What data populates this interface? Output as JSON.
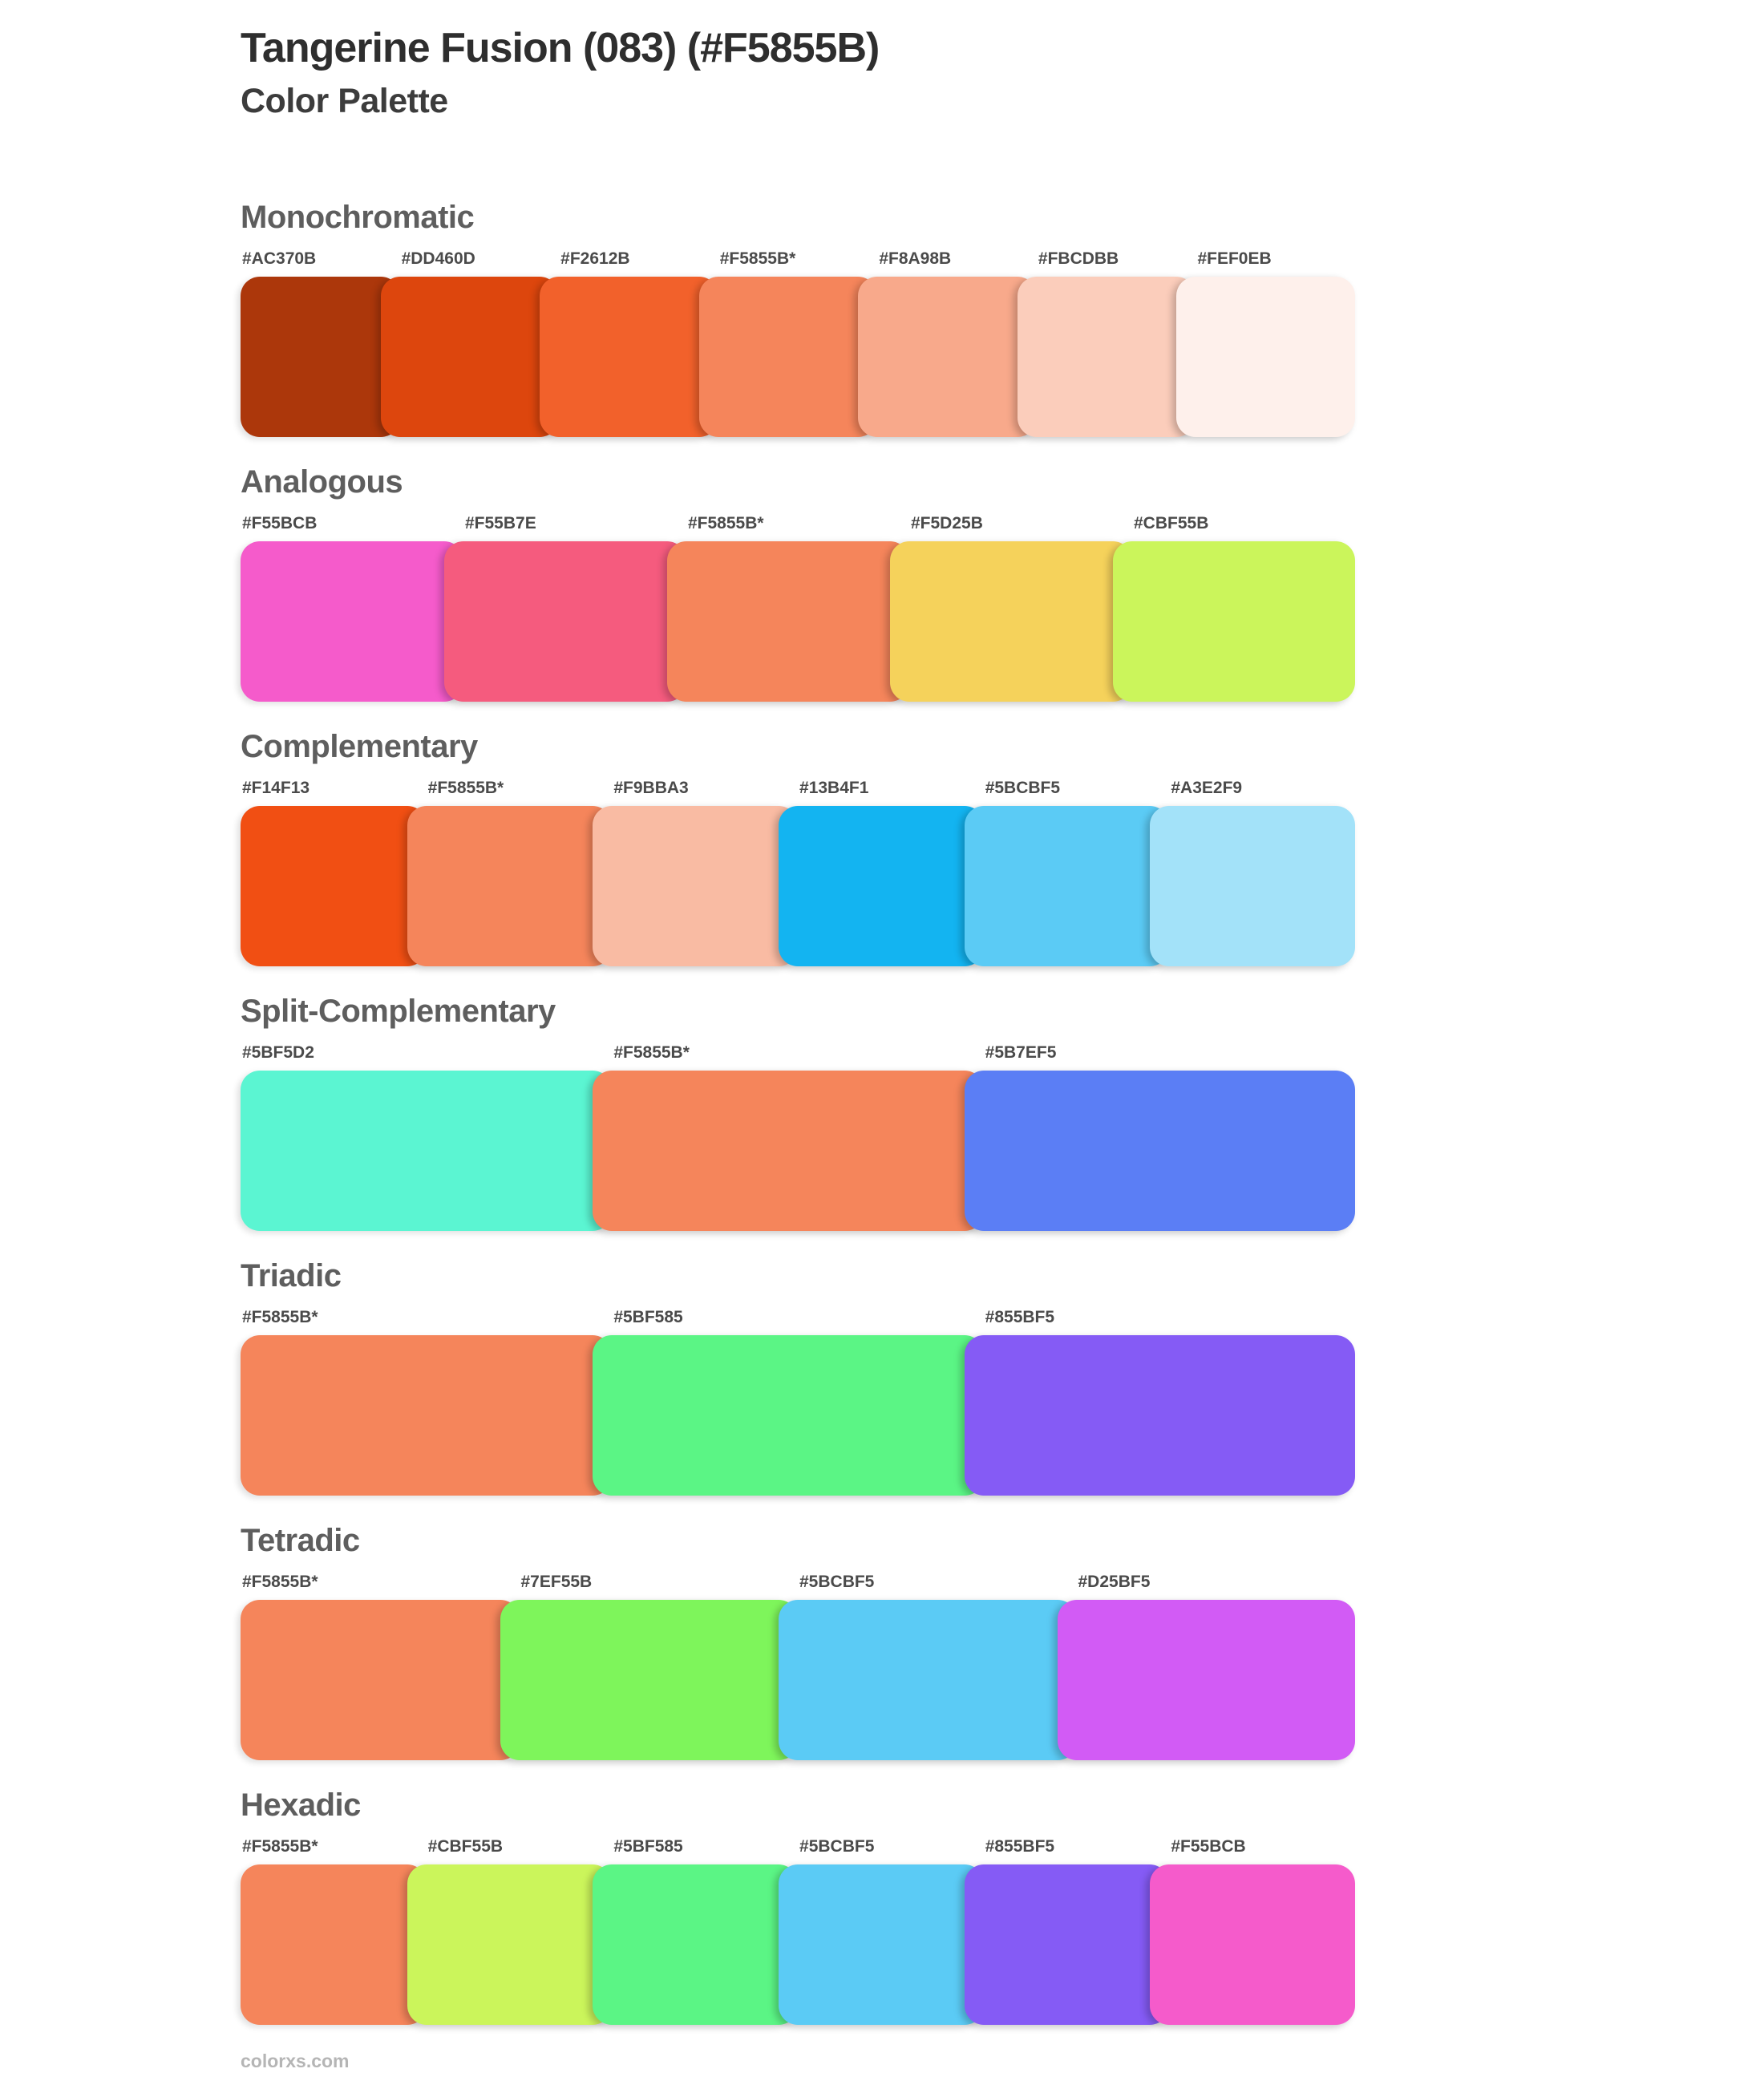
{
  "page": {
    "title": "Tangerine Fusion (083) (#F5855B)",
    "subtitle": "Color Palette",
    "footer": "colorxs.com",
    "base_color": "#F5855B"
  },
  "sections": [
    {
      "title": "Monochromatic",
      "swatches": [
        {
          "label": "#AC370B",
          "hex": "#AC370B"
        },
        {
          "label": "#DD460D",
          "hex": "#DD460D"
        },
        {
          "label": "#F2612B",
          "hex": "#F2612B"
        },
        {
          "label": "#F5855B*",
          "hex": "#F5855B"
        },
        {
          "label": "#F8A98B",
          "hex": "#F8A98B"
        },
        {
          "label": "#FBCDBB",
          "hex": "#FBCDBB"
        },
        {
          "label": "#FEF0EB",
          "hex": "#FEF0EB"
        }
      ]
    },
    {
      "title": "Analogous",
      "swatches": [
        {
          "label": "#F55BCB",
          "hex": "#F55BCB"
        },
        {
          "label": "#F55B7E",
          "hex": "#F55B7E"
        },
        {
          "label": "#F5855B*",
          "hex": "#F5855B"
        },
        {
          "label": "#F5D25B",
          "hex": "#F5D25B"
        },
        {
          "label": "#CBF55B",
          "hex": "#CBF55B"
        }
      ]
    },
    {
      "title": "Complementary",
      "swatches": [
        {
          "label": "#F14F13",
          "hex": "#F14F13"
        },
        {
          "label": "#F5855B*",
          "hex": "#F5855B"
        },
        {
          "label": "#F9BBA3",
          "hex": "#F9BBA3"
        },
        {
          "label": "#13B4F1",
          "hex": "#13B4F1"
        },
        {
          "label": "#5BCBF5",
          "hex": "#5BCBF5"
        },
        {
          "label": "#A3E2F9",
          "hex": "#A3E2F9"
        }
      ]
    },
    {
      "title": "Split-Complementary",
      "swatches": [
        {
          "label": "#5BF5D2",
          "hex": "#5BF5D2"
        },
        {
          "label": "#F5855B*",
          "hex": "#F5855B"
        },
        {
          "label": "#5B7EF5",
          "hex": "#5B7EF5"
        }
      ]
    },
    {
      "title": "Triadic",
      "swatches": [
        {
          "label": "#F5855B*",
          "hex": "#F5855B"
        },
        {
          "label": "#5BF585",
          "hex": "#5BF585"
        },
        {
          "label": "#855BF5",
          "hex": "#855BF5"
        }
      ]
    },
    {
      "title": "Tetradic",
      "swatches": [
        {
          "label": "#F5855B*",
          "hex": "#F5855B"
        },
        {
          "label": "#7EF55B",
          "hex": "#7EF55B"
        },
        {
          "label": "#5BCBF5",
          "hex": "#5BCBF5"
        },
        {
          "label": "#D25BF5",
          "hex": "#D25BF5"
        }
      ]
    },
    {
      "title": "Hexadic",
      "swatches": [
        {
          "label": "#F5855B*",
          "hex": "#F5855B"
        },
        {
          "label": "#CBF55B",
          "hex": "#CBF55B"
        },
        {
          "label": "#5BF585",
          "hex": "#5BF585"
        },
        {
          "label": "#5BCBF5",
          "hex": "#5BCBF5"
        },
        {
          "label": "#855BF5",
          "hex": "#855BF5"
        },
        {
          "label": "#F55BCB",
          "hex": "#F55BCB"
        }
      ]
    }
  ]
}
